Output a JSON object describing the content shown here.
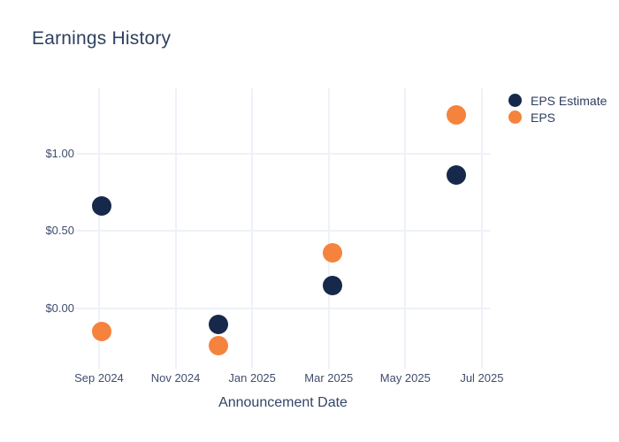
{
  "title": "Earnings History",
  "chart_data": {
    "type": "scatter",
    "title": "Earnings History",
    "xlabel": "Announcement Date",
    "ylabel": "",
    "grid": true,
    "legend_position": "top-right",
    "marker_px": 22,
    "x_unit": "months since 2024-09-01",
    "x_range": [
      -0.6,
      10.21
    ],
    "y_range": [
      -0.387,
      1.419
    ],
    "x_ticks": [
      {
        "pos": 0,
        "label": "Sep 2024"
      },
      {
        "pos": 2,
        "label": "Nov 2024"
      },
      {
        "pos": 4,
        "label": "Jan 2025"
      },
      {
        "pos": 6,
        "label": "Mar 2025"
      },
      {
        "pos": 8,
        "label": "May 2025"
      },
      {
        "pos": 10,
        "label": "Jul 2025"
      }
    ],
    "y_ticks": [
      {
        "value": 0.0,
        "label": "$0.00"
      },
      {
        "value": 0.5,
        "label": "$0.50"
      },
      {
        "value": 1.0,
        "label": "$1.00"
      }
    ],
    "series": [
      {
        "name": "EPS Estimate",
        "color": "#16294a",
        "points": [
          {
            "date": "2024-09-03",
            "x": 0.08,
            "value": 0.66
          },
          {
            "date": "2024-12-05",
            "x": 3.13,
            "value": -0.1
          },
          {
            "date": "2025-03-04",
            "x": 6.1,
            "value": 0.15
          },
          {
            "date": "2025-06-11",
            "x": 9.33,
            "value": 0.86
          }
        ]
      },
      {
        "name": "EPS",
        "color": "#f5833d",
        "points": [
          {
            "date": "2024-09-03",
            "x": 0.08,
            "value": -0.15
          },
          {
            "date": "2024-12-05",
            "x": 3.13,
            "value": -0.24
          },
          {
            "date": "2025-03-04",
            "x": 6.1,
            "value": 0.36
          },
          {
            "date": "2025-06-11",
            "x": 9.33,
            "value": 1.25
          }
        ]
      }
    ],
    "colors": {
      "background": "#ffffff",
      "gridline": "#eef1f8",
      "tick_text": "#3f4d6d",
      "title_text": "#2e4160",
      "axis_title_text": "#344565",
      "legend_text": "#2c3d5d",
      "eps_estimate": "#16294a",
      "eps": "#f5833d"
    }
  }
}
